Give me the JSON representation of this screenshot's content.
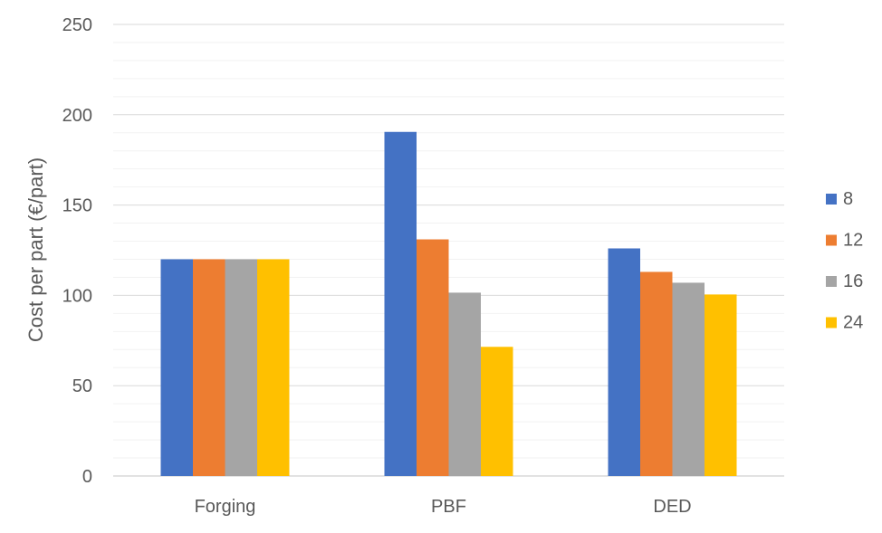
{
  "chart_data": {
    "type": "bar",
    "title": "",
    "xlabel": "",
    "ylabel": "Cost per part (€/part)",
    "categories": [
      "Forging",
      "PBF",
      "DED"
    ],
    "series": [
      {
        "name": "8",
        "color": "#4472C4",
        "values": [
          120,
          190.5,
          126
        ]
      },
      {
        "name": "12",
        "color": "#ED7D31",
        "values": [
          120,
          131,
          113
        ]
      },
      {
        "name": "16",
        "color": "#A5A5A5",
        "values": [
          120,
          101.5,
          107
        ]
      },
      {
        "name": "24",
        "color": "#FFC000",
        "values": [
          120,
          71.5,
          100.5
        ]
      }
    ],
    "ylim": [
      0,
      250
    ],
    "yticks": [
      0,
      50,
      100,
      150,
      200,
      250
    ],
    "grid": true,
    "minor_grid": true,
    "legend_position": "right"
  }
}
